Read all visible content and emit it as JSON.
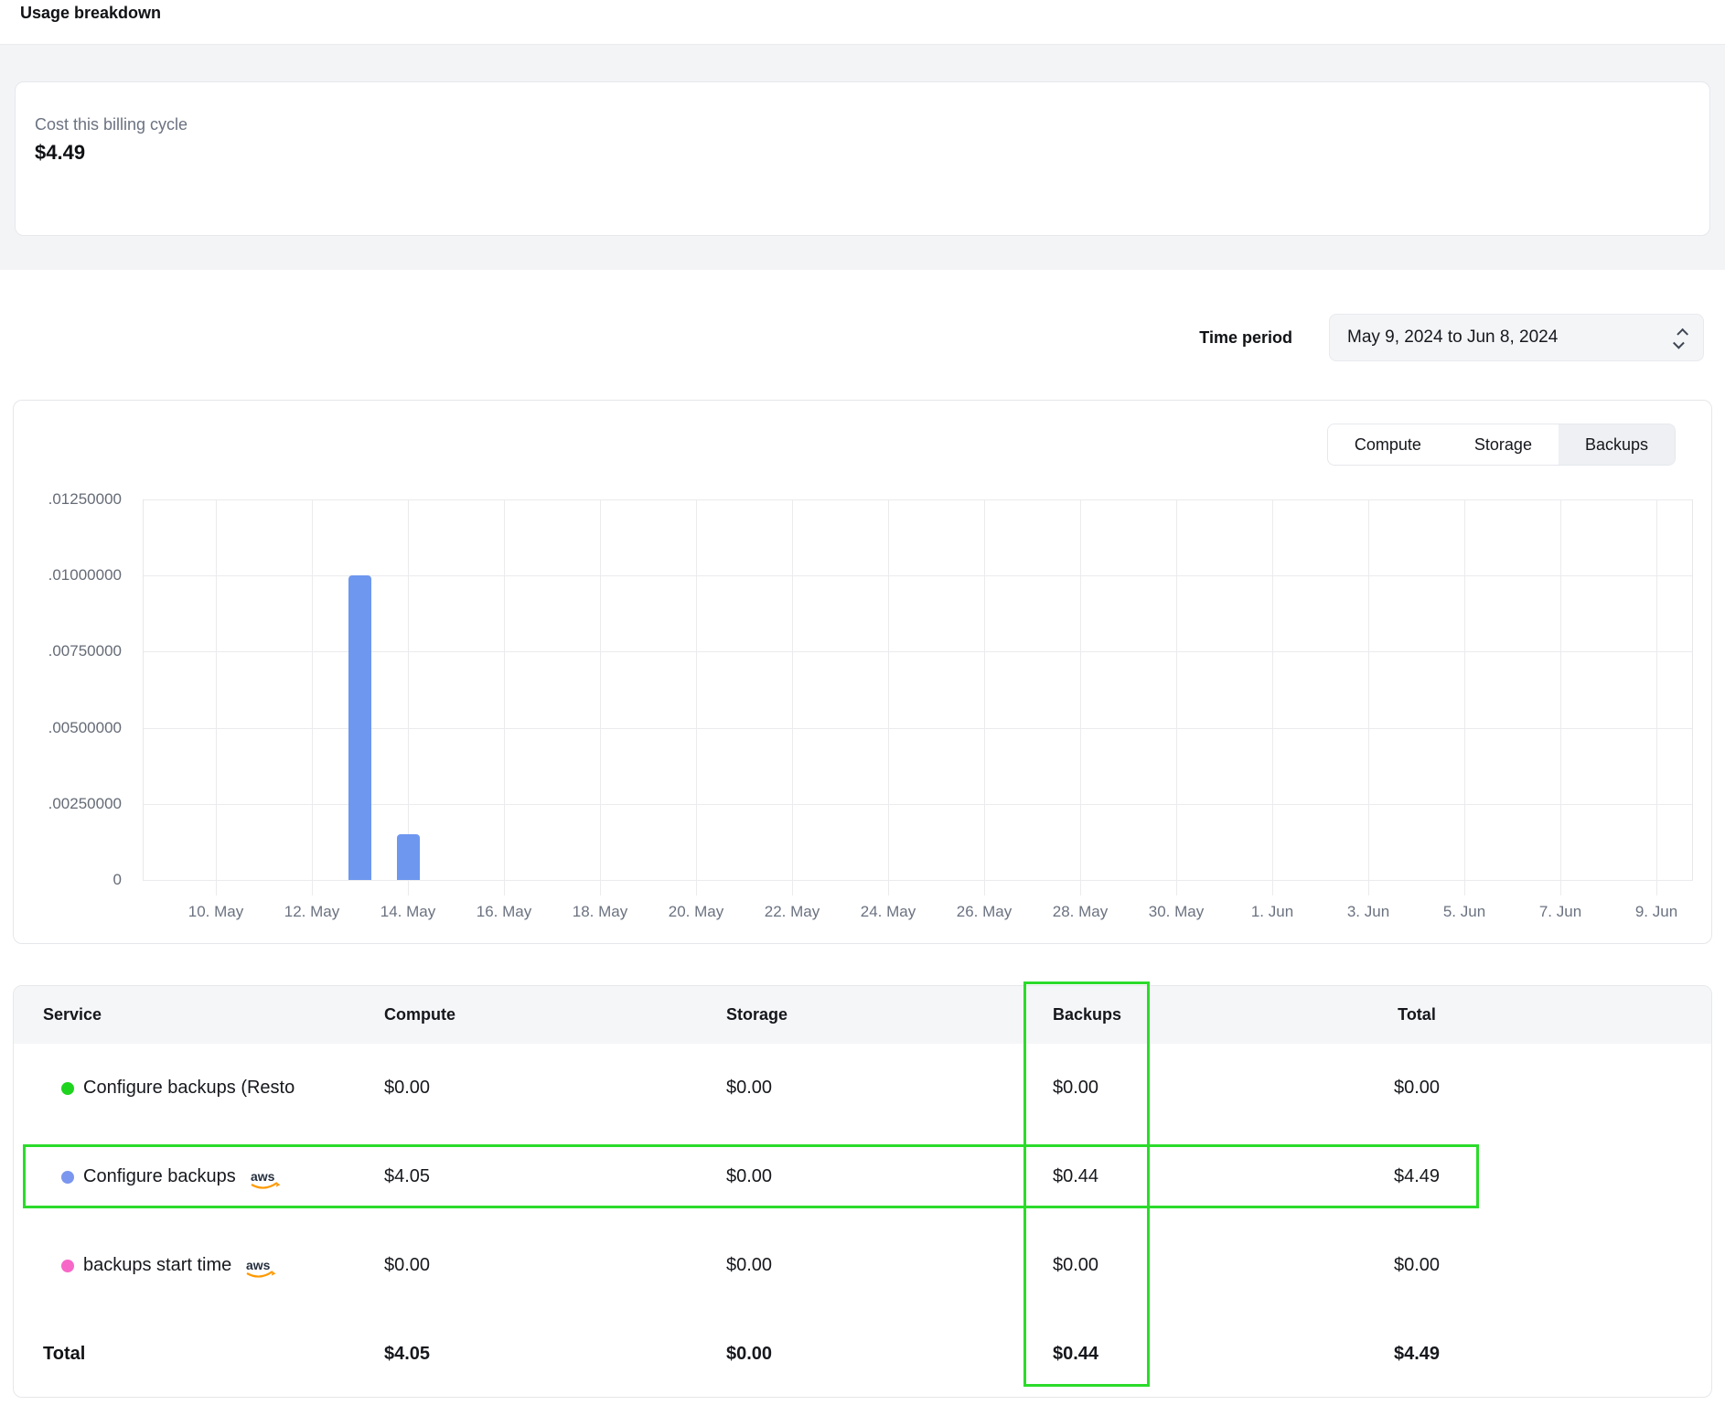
{
  "page": {
    "title": "Usage breakdown"
  },
  "billing_summary": {
    "label": "Cost this billing cycle",
    "amount": "$4.49"
  },
  "time_period": {
    "label": "Time period",
    "value": "May 9, 2024 to Jun 8, 2024"
  },
  "chart_controls": {
    "tabs": [
      {
        "label": "Compute",
        "active": false
      },
      {
        "label": "Storage",
        "active": false
      },
      {
        "label": "Backups",
        "active": true
      }
    ]
  },
  "chart_data": {
    "type": "bar",
    "title": "Backups usage by day (May 9, 2024 to Jun 8, 2024)",
    "xlabel": "",
    "ylabel": "",
    "ylim": [
      0,
      0.0125
    ],
    "grid": true,
    "legend": "none",
    "bar_color": "#6e97ef",
    "y_ticks": [
      {
        "label": ".01250000",
        "value": 0.0125
      },
      {
        "label": ".01000000",
        "value": 0.01
      },
      {
        "label": ".00750000",
        "value": 0.0075
      },
      {
        "label": ".00500000",
        "value": 0.005
      },
      {
        "label": ".00250000",
        "value": 0.0025
      },
      {
        "label": "0",
        "value": 0
      }
    ],
    "x_ticks": [
      "10. May",
      "12. May",
      "14. May",
      "16. May",
      "18. May",
      "20. May",
      "22. May",
      "24. May",
      "26. May",
      "28. May",
      "30. May",
      "1. Jun",
      "3. Jun",
      "5. Jun",
      "7. Jun",
      "9. Jun"
    ],
    "bars": [
      {
        "date": "13. May",
        "day_offset": 3,
        "value": 0.01
      },
      {
        "date": "14. May",
        "day_offset": 4,
        "value": 0.0015
      }
    ]
  },
  "usage_table": {
    "columns": [
      "Service",
      "Compute",
      "Storage",
      "Backups",
      "Total"
    ],
    "rows": [
      {
        "service": "Configure backups (Resto",
        "dot_color": "#1fd41f",
        "aws_badge": false,
        "compute": "$0.00",
        "storage": "$0.00",
        "backups": "$0.00",
        "total": "$0.00"
      },
      {
        "service": "Configure backups",
        "dot_color": "#7b96ee",
        "aws_badge": true,
        "compute": "$4.05",
        "storage": "$0.00",
        "backups": "$0.44",
        "total": "$4.49"
      },
      {
        "service": "backups start time",
        "dot_color": "#f767c8",
        "aws_badge": true,
        "compute": "$0.00",
        "storage": "$0.00",
        "backups": "$0.00",
        "total": "$0.00"
      }
    ],
    "total_row": {
      "label": "Total",
      "compute": "$4.05",
      "storage": "$0.00",
      "backups": "$0.44",
      "total": "$4.49"
    }
  },
  "aws_badge": {
    "text": "aws",
    "text_color": "#252f3e",
    "smile_color": "#ff9900"
  },
  "annotations": {
    "color": "#2bdb2b",
    "highlighted_column": "Backups",
    "highlighted_row": "Configure backups"
  }
}
